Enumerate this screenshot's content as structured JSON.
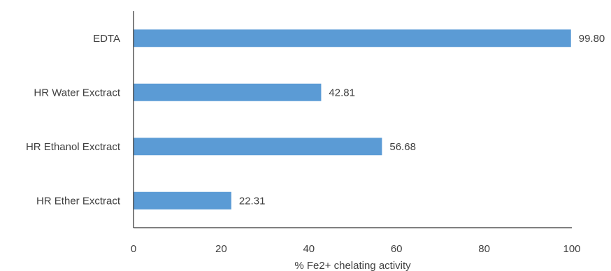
{
  "chart_data": {
    "type": "bar",
    "orientation": "horizontal",
    "categories": [
      "EDTA",
      "HR Water Exctract",
      "HR Ethanol Exctract",
      "HR Ether Exctract"
    ],
    "values": [
      99.8,
      42.81,
      56.68,
      22.31
    ],
    "data_labels": [
      "99.80",
      "42.81",
      "56.68",
      "22.31"
    ],
    "title": "",
    "xlabel": "% Fe2+ chelating activity",
    "ylabel": "",
    "xlim": [
      0,
      100
    ],
    "x_ticks": [
      0,
      20,
      40,
      60,
      80,
      100
    ],
    "grid": false,
    "legend": "none",
    "colors": {
      "bar": "#5B9BD5",
      "axis": "#000000",
      "text": "#404040"
    }
  }
}
